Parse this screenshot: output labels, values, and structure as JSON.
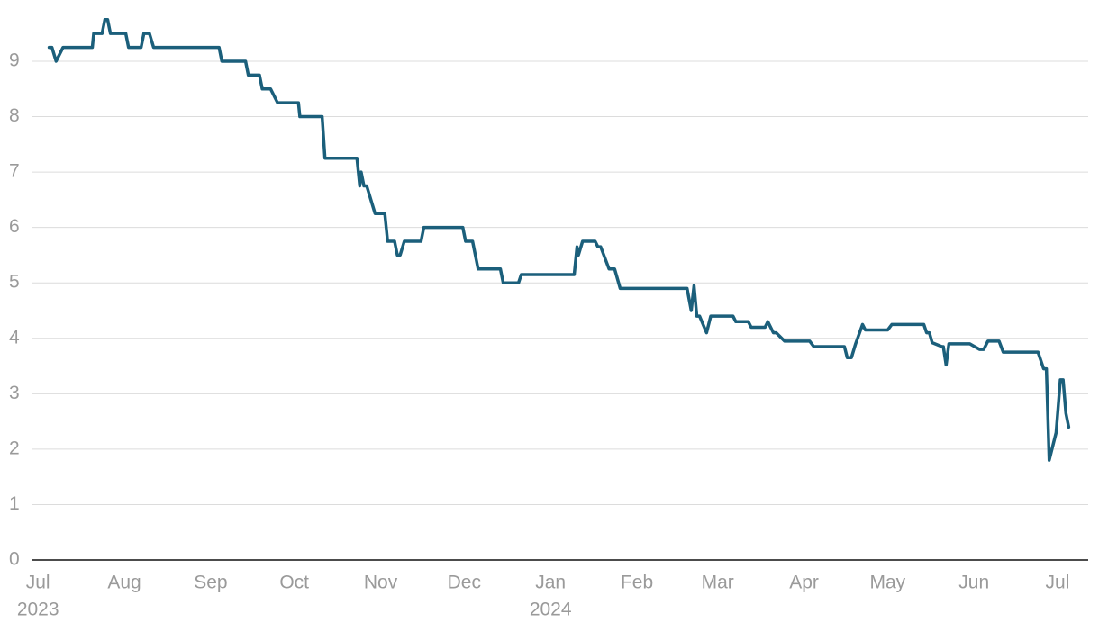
{
  "chart_data": {
    "type": "line",
    "x": [
      4,
      5,
      6.5,
      9,
      19.5,
      20,
      23,
      24,
      25,
      26,
      31.5,
      32.5,
      37,
      38,
      40,
      41.5,
      65,
      66,
      74.5,
      75.5,
      79.5,
      80.5,
      83.5,
      86,
      93.5,
      94,
      102,
      103,
      114.5,
      115.5,
      116,
      117,
      118,
      121,
      124.5,
      125.5,
      128,
      129,
      130,
      131.5,
      137.5,
      138.5,
      152.5,
      153.5,
      156,
      158,
      166,
      167,
      172.5,
      173.5,
      192.5,
      193.5,
      194,
      195.5,
      200,
      201,
      202,
      205,
      207,
      209,
      233,
      234.5,
      235.5,
      236.5,
      237.5,
      240,
      241.5,
      249.5,
      250.5,
      255,
      256,
      261,
      262,
      264,
      265,
      268,
      277,
      278.5,
      289.5,
      290.5,
      292,
      293.5,
      296,
      297,
      305,
      306.5,
      318,
      319,
      320,
      321,
      324.5,
      325,
      326,
      327,
      334.5,
      338,
      339.5,
      341,
      345,
      346.5,
      359,
      361,
      362,
      363,
      365.5,
      367,
      368,
      369,
      370
    ],
    "series": [
      {
        "color": "#1b5f7b",
        "values": [
          9.25,
          9.25,
          9.0,
          9.25,
          9.25,
          9.5,
          9.5,
          9.75,
          9.75,
          9.5,
          9.5,
          9.25,
          9.25,
          9.5,
          9.5,
          9.25,
          9.25,
          9.0,
          9.0,
          8.75,
          8.75,
          8.5,
          8.5,
          8.25,
          8.25,
          8.0,
          8.0,
          7.25,
          7.25,
          6.75,
          7.0,
          6.75,
          6.75,
          6.25,
          6.25,
          5.75,
          5.75,
          5.5,
          5.5,
          5.75,
          5.75,
          6.0,
          6.0,
          5.75,
          5.75,
          5.25,
          5.25,
          5.0,
          5.0,
          5.15,
          5.15,
          5.65,
          5.5,
          5.75,
          5.75,
          5.65,
          5.65,
          5.25,
          5.25,
          4.9,
          4.9,
          4.5,
          4.95,
          4.4,
          4.4,
          4.1,
          4.4,
          4.4,
          4.3,
          4.3,
          4.2,
          4.2,
          4.3,
          4.1,
          4.1,
          3.95,
          3.95,
          3.85,
          3.85,
          3.65,
          3.65,
          3.9,
          4.25,
          4.15,
          4.15,
          4.25,
          4.25,
          4.1,
          4.1,
          3.92,
          3.85,
          3.85,
          3.52,
          3.9,
          3.9,
          3.8,
          3.8,
          3.95,
          3.95,
          3.75,
          3.75,
          3.45,
          3.45,
          1.8,
          2.3,
          3.25,
          3.25,
          2.65,
          2.4
        ]
      }
    ],
    "xlim": [
      -2,
      377
    ],
    "xticks": [
      {
        "value": 0,
        "label": "Jul"
      },
      {
        "value": 31,
        "label": "Aug"
      },
      {
        "value": 62,
        "label": "Sep"
      },
      {
        "value": 92,
        "label": "Oct"
      },
      {
        "value": 123,
        "label": "Nov"
      },
      {
        "value": 153,
        "label": "Dec"
      },
      {
        "value": 184,
        "label": "Jan"
      },
      {
        "value": 215,
        "label": "Feb"
      },
      {
        "value": 244,
        "label": "Mar"
      },
      {
        "value": 275,
        "label": "Apr"
      },
      {
        "value": 305,
        "label": "May"
      },
      {
        "value": 336,
        "label": "Jun"
      },
      {
        "value": 366,
        "label": "Jul"
      }
    ],
    "xtick_years": [
      {
        "value": 0,
        "label": "2023"
      },
      {
        "value": 184,
        "label": "2024"
      }
    ],
    "ylim": [
      0,
      10
    ],
    "yticks": [
      0,
      1,
      2,
      3,
      4,
      5,
      6,
      7,
      8,
      9
    ],
    "grid": true
  }
}
